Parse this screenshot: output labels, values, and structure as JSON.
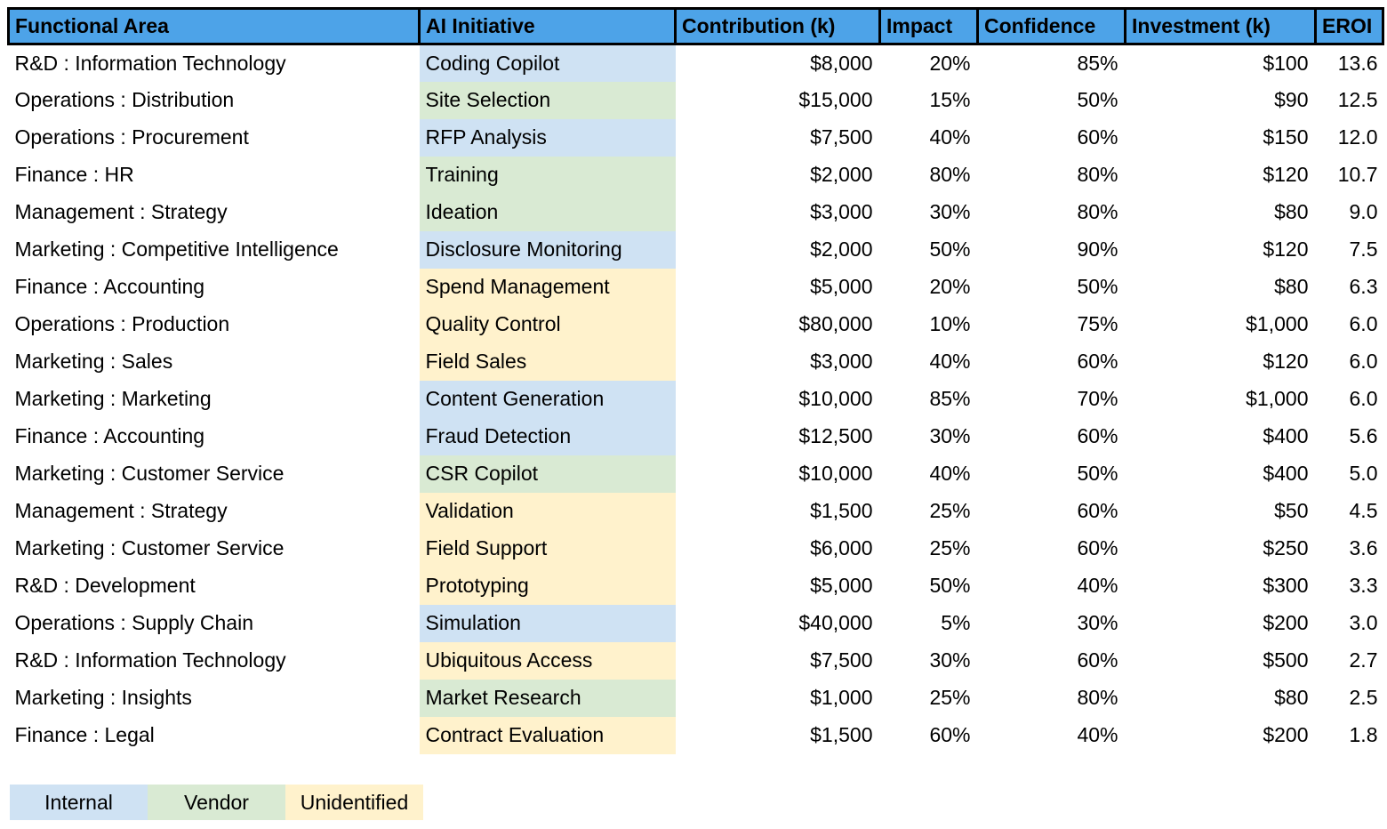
{
  "table": {
    "columns": [
      {
        "label": "Functional Area"
      },
      {
        "label": "AI Initiative"
      },
      {
        "label": "Contribution (k)"
      },
      {
        "label": "Impact"
      },
      {
        "label": "Confidence"
      },
      {
        "label": "Investment (k)"
      },
      {
        "label": "EROI"
      }
    ],
    "rows": [
      {
        "functional_area": "R&D : Information Technology",
        "initiative": "Coding Copilot",
        "source": "internal",
        "contribution": "$8,000",
        "impact": "20%",
        "confidence": "85%",
        "investment": "$100",
        "eroi": "13.6"
      },
      {
        "functional_area": "Operations : Distribution",
        "initiative": "Site Selection",
        "source": "vendor",
        "contribution": "$15,000",
        "impact": "15%",
        "confidence": "50%",
        "investment": "$90",
        "eroi": "12.5"
      },
      {
        "functional_area": "Operations : Procurement",
        "initiative": "RFP Analysis",
        "source": "internal",
        "contribution": "$7,500",
        "impact": "40%",
        "confidence": "60%",
        "investment": "$150",
        "eroi": "12.0"
      },
      {
        "functional_area": "Finance : HR",
        "initiative": "Training",
        "source": "vendor",
        "contribution": "$2,000",
        "impact": "80%",
        "confidence": "80%",
        "investment": "$120",
        "eroi": "10.7"
      },
      {
        "functional_area": "Management : Strategy",
        "initiative": "Ideation",
        "source": "vendor",
        "contribution": "$3,000",
        "impact": "30%",
        "confidence": "80%",
        "investment": "$80",
        "eroi": "9.0"
      },
      {
        "functional_area": "Marketing : Competitive Intelligence",
        "initiative": "Disclosure Monitoring",
        "source": "internal",
        "contribution": "$2,000",
        "impact": "50%",
        "confidence": "90%",
        "investment": "$120",
        "eroi": "7.5"
      },
      {
        "functional_area": "Finance : Accounting",
        "initiative": "Spend Management",
        "source": "unidentified",
        "contribution": "$5,000",
        "impact": "20%",
        "confidence": "50%",
        "investment": "$80",
        "eroi": "6.3"
      },
      {
        "functional_area": "Operations : Production",
        "initiative": "Quality Control",
        "source": "unidentified",
        "contribution": "$80,000",
        "impact": "10%",
        "confidence": "75%",
        "investment": "$1,000",
        "eroi": "6.0"
      },
      {
        "functional_area": "Marketing : Sales",
        "initiative": "Field Sales",
        "source": "unidentified",
        "contribution": "$3,000",
        "impact": "40%",
        "confidence": "60%",
        "investment": "$120",
        "eroi": "6.0"
      },
      {
        "functional_area": "Marketing : Marketing",
        "initiative": "Content Generation",
        "source": "internal",
        "contribution": "$10,000",
        "impact": "85%",
        "confidence": "70%",
        "investment": "$1,000",
        "eroi": "6.0"
      },
      {
        "functional_area": "Finance : Accounting",
        "initiative": "Fraud Detection",
        "source": "internal",
        "contribution": "$12,500",
        "impact": "30%",
        "confidence": "60%",
        "investment": "$400",
        "eroi": "5.6"
      },
      {
        "functional_area": "Marketing : Customer Service",
        "initiative": "CSR Copilot",
        "source": "vendor",
        "contribution": "$10,000",
        "impact": "40%",
        "confidence": "50%",
        "investment": "$400",
        "eroi": "5.0"
      },
      {
        "functional_area": "Management : Strategy",
        "initiative": "Validation",
        "source": "unidentified",
        "contribution": "$1,500",
        "impact": "25%",
        "confidence": "60%",
        "investment": "$50",
        "eroi": "4.5"
      },
      {
        "functional_area": "Marketing : Customer Service",
        "initiative": "Field Support",
        "source": "unidentified",
        "contribution": "$6,000",
        "impact": "25%",
        "confidence": "60%",
        "investment": "$250",
        "eroi": "3.6"
      },
      {
        "functional_area": "R&D : Development",
        "initiative": "Prototyping",
        "source": "unidentified",
        "contribution": "$5,000",
        "impact": "50%",
        "confidence": "40%",
        "investment": "$300",
        "eroi": "3.3"
      },
      {
        "functional_area": "Operations : Supply Chain",
        "initiative": "Simulation",
        "source": "internal",
        "contribution": "$40,000",
        "impact": "5%",
        "confidence": "30%",
        "investment": "$200",
        "eroi": "3.0"
      },
      {
        "functional_area": "R&D : Information Technology",
        "initiative": "Ubiquitous Access",
        "source": "unidentified",
        "contribution": "$7,500",
        "impact": "30%",
        "confidence": "60%",
        "investment": "$500",
        "eroi": "2.7"
      },
      {
        "functional_area": "Marketing : Insights",
        "initiative": "Market Research",
        "source": "vendor",
        "contribution": "$1,000",
        "impact": "25%",
        "confidence": "80%",
        "investment": "$80",
        "eroi": "2.5"
      },
      {
        "functional_area": "Finance : Legal",
        "initiative": "Contract Evaluation",
        "source": "unidentified",
        "contribution": "$1,500",
        "impact": "60%",
        "confidence": "40%",
        "investment": "$200",
        "eroi": "1.8"
      }
    ]
  },
  "legend": {
    "items": [
      {
        "label": "Internal",
        "key": "internal"
      },
      {
        "label": "Vendor",
        "key": "vendor"
      },
      {
        "label": "Unidentified",
        "key": "unidentified"
      }
    ]
  },
  "colors": {
    "header_bg": "#4DA3E8",
    "header_border": "#000000",
    "internal": "#CFE2F3",
    "vendor": "#D9EAD3",
    "unidentified": "#FFF2CC"
  },
  "chart_data": {
    "type": "table",
    "title": "",
    "columns": [
      "Functional Area",
      "AI Initiative",
      "Contribution (k)",
      "Impact",
      "Confidence",
      "Investment (k)",
      "EROI"
    ],
    "rows": [
      [
        "R&D : Information Technology",
        "Coding Copilot",
        "$8,000",
        "20%",
        "85%",
        "$100",
        13.6
      ],
      [
        "Operations : Distribution",
        "Site Selection",
        "$15,000",
        "15%",
        "50%",
        "$90",
        12.5
      ],
      [
        "Operations : Procurement",
        "RFP Analysis",
        "$7,500",
        "40%",
        "60%",
        "$150",
        12.0
      ],
      [
        "Finance : HR",
        "Training",
        "$2,000",
        "80%",
        "80%",
        "$120",
        10.7
      ],
      [
        "Management : Strategy",
        "Ideation",
        "$3,000",
        "30%",
        "80%",
        "$80",
        9.0
      ],
      [
        "Marketing : Competitive Intelligence",
        "Disclosure Monitoring",
        "$2,000",
        "50%",
        "90%",
        "$120",
        7.5
      ],
      [
        "Finance : Accounting",
        "Spend Management",
        "$5,000",
        "20%",
        "50%",
        "$80",
        6.3
      ],
      [
        "Operations : Production",
        "Quality Control",
        "$80,000",
        "10%",
        "75%",
        "$1,000",
        6.0
      ],
      [
        "Marketing : Sales",
        "Field Sales",
        "$3,000",
        "40%",
        "60%",
        "$120",
        6.0
      ],
      [
        "Marketing : Marketing",
        "Content Generation",
        "$10,000",
        "85%",
        "70%",
        "$1,000",
        6.0
      ],
      [
        "Finance : Accounting",
        "Fraud Detection",
        "$12,500",
        "30%",
        "60%",
        "$400",
        5.6
      ],
      [
        "Marketing : Customer Service",
        "CSR Copilot",
        "$10,000",
        "40%",
        "50%",
        "$400",
        5.0
      ],
      [
        "Management : Strategy",
        "Validation",
        "$1,500",
        "25%",
        "60%",
        "$50",
        4.5
      ],
      [
        "Marketing : Customer Service",
        "Field Support",
        "$6,000",
        "25%",
        "60%",
        "$250",
        3.6
      ],
      [
        "R&D : Development",
        "Prototyping",
        "$5,000",
        "50%",
        "40%",
        "$300",
        3.3
      ],
      [
        "Operations : Supply Chain",
        "Simulation",
        "$40,000",
        "5%",
        "30%",
        "$200",
        3.0
      ],
      [
        "R&D : Information Technology",
        "Ubiquitous Access",
        "$7,500",
        "30%",
        "60%",
        "$500",
        2.7
      ],
      [
        "Marketing : Insights",
        "Market Research",
        "$1,000",
        "25%",
        "80%",
        "$80",
        2.5
      ],
      [
        "Finance : Legal",
        "Contract Evaluation",
        "$1,500",
        "60%",
        "40%",
        "$200",
        1.8
      ]
    ],
    "row_highlight_legend": {
      "Internal": "#CFE2F3",
      "Vendor": "#D9EAD3",
      "Unidentified": "#FFF2CC"
    },
    "highlighted_column": "AI Initiative"
  }
}
